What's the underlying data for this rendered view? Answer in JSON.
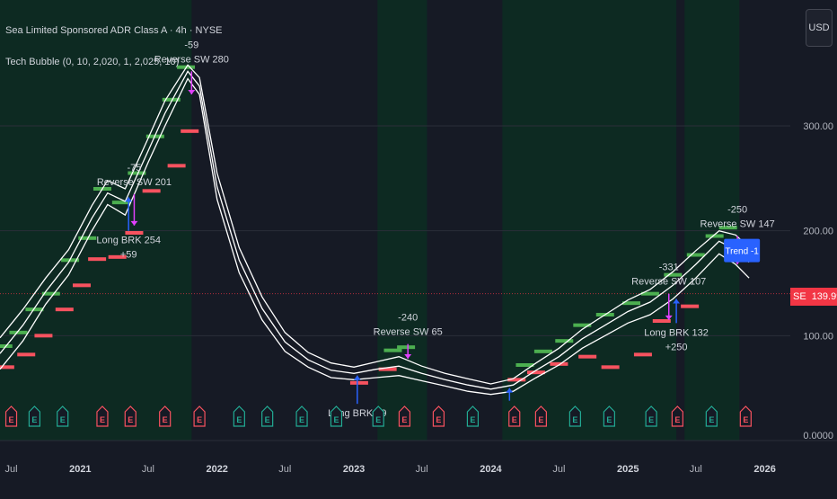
{
  "header": {
    "title": "Sea Limited Sponsored ADR Class A · 4h · NYSE",
    "indicator": "Tech Bubble (0, 10, 2,020, 1, 2,025, 10)"
  },
  "currency": "USD",
  "last_price": {
    "symbol": "SE",
    "value": "139.99"
  },
  "colors": {
    "background": "#161a25",
    "bull_zone": "#0d2a22",
    "bear_zone": "#161a25",
    "ma_line": "#ffffff",
    "candle_up": "#26a69a",
    "candle_down": "#ef5350",
    "long_marker": "#2962ff",
    "reverse_marker": "#e040fb",
    "bar_green": "#4caf50",
    "bar_red": "#f7525f",
    "last_price": "#f23645"
  },
  "chart_data": {
    "type": "line",
    "title": "Sea Limited Sponsored ADR Class A · 4h · NYSE",
    "xlabel": "",
    "ylabel": "",
    "x_ticks": [
      "Jul",
      "2021",
      "Jul",
      "2022",
      "Jul",
      "2023",
      "Jul",
      "2024",
      "Jul",
      "2025",
      "Jul",
      "2026"
    ],
    "x_tick_dates": [
      "2020-07-01",
      "2021-01-01",
      "2021-07-01",
      "2022-01-01",
      "2022-07-01",
      "2023-01-01",
      "2023-07-01",
      "2024-01-01",
      "2024-07-01",
      "2025-01-01",
      "2025-07-01",
      "2026-01-01"
    ],
    "y_ticks": [
      "100.00",
      "200.00",
      "300.00"
    ],
    "y_tick_values": [
      100,
      200,
      300
    ],
    "y_bottom_label": "0.0000",
    "xlim": [
      "2020-06-01",
      "2026-03-10"
    ],
    "ylim": [
      0,
      420
    ],
    "series": [
      {
        "points": [
          [
            "2020-06-01",
            68
          ],
          [
            "2020-08-01",
            95
          ],
          [
            "2020-10-01",
            130
          ],
          [
            "2020-12-01",
            158
          ],
          [
            "2021-02-01",
            200
          ],
          [
            "2021-03-15",
            225
          ],
          [
            "2021-05-01",
            215
          ],
          [
            "2021-07-01",
            265
          ],
          [
            "2021-08-15",
            300
          ],
          [
            "2021-10-15",
            345
          ],
          [
            "2021-11-15",
            330
          ],
          [
            "2022-01-01",
            230
          ],
          [
            "2022-03-01",
            160
          ],
          [
            "2022-05-01",
            115
          ],
          [
            "2022-07-01",
            85
          ],
          [
            "2022-09-01",
            70
          ],
          [
            "2022-11-01",
            60
          ],
          [
            "2023-01-01",
            58
          ],
          [
            "2023-03-01",
            60
          ],
          [
            "2023-05-01",
            62
          ],
          [
            "2023-07-01",
            57
          ],
          [
            "2023-09-01",
            52
          ],
          [
            "2023-11-01",
            47
          ],
          [
            "2024-01-01",
            44
          ],
          [
            "2024-03-01",
            47
          ],
          [
            "2024-05-01",
            60
          ],
          [
            "2024-07-01",
            72
          ],
          [
            "2024-09-01",
            88
          ],
          [
            "2024-11-01",
            100
          ],
          [
            "2025-01-01",
            112
          ],
          [
            "2025-03-01",
            120
          ],
          [
            "2025-05-01",
            135
          ],
          [
            "2025-07-01",
            155
          ],
          [
            "2025-09-01",
            178
          ],
          [
            "2025-10-15",
            168
          ],
          [
            "2025-11-20",
            155
          ]
        ]
      },
      {
        "points": [
          [
            "2020-06-01",
            83
          ],
          [
            "2020-08-01",
            110
          ],
          [
            "2020-10-01",
            142
          ],
          [
            "2020-12-01",
            170
          ],
          [
            "2021-02-01",
            212
          ],
          [
            "2021-03-15",
            236
          ],
          [
            "2021-05-01",
            228
          ],
          [
            "2021-07-01",
            276
          ],
          [
            "2021-08-15",
            312
          ],
          [
            "2021-10-15",
            352
          ],
          [
            "2021-11-15",
            338
          ],
          [
            "2022-01-01",
            242
          ],
          [
            "2022-03-01",
            172
          ],
          [
            "2022-05-01",
            126
          ],
          [
            "2022-07-01",
            94
          ],
          [
            "2022-09-01",
            77
          ],
          [
            "2022-11-01",
            67
          ],
          [
            "2023-01-01",
            64
          ],
          [
            "2023-03-01",
            68
          ],
          [
            "2023-05-01",
            71
          ],
          [
            "2023-07-01",
            64
          ],
          [
            "2023-09-01",
            58
          ],
          [
            "2023-11-01",
            53
          ],
          [
            "2024-01-01",
            49
          ],
          [
            "2024-03-01",
            53
          ],
          [
            "2024-05-01",
            67
          ],
          [
            "2024-07-01",
            80
          ],
          [
            "2024-09-01",
            97
          ],
          [
            "2024-11-01",
            110
          ],
          [
            "2025-01-01",
            123
          ],
          [
            "2025-03-01",
            132
          ],
          [
            "2025-05-01",
            148
          ],
          [
            "2025-07-01",
            168
          ],
          [
            "2025-09-01",
            190
          ],
          [
            "2025-10-15",
            182
          ],
          [
            "2025-11-20",
            170
          ]
        ]
      },
      {
        "points": [
          [
            "2020-06-01",
            98
          ],
          [
            "2020-08-01",
            125
          ],
          [
            "2020-10-01",
            155
          ],
          [
            "2020-12-01",
            182
          ],
          [
            "2021-02-01",
            224
          ],
          [
            "2021-03-15",
            248
          ],
          [
            "2021-05-01",
            240
          ],
          [
            "2021-07-01",
            288
          ],
          [
            "2021-08-15",
            324
          ],
          [
            "2021-10-15",
            358
          ],
          [
            "2021-11-15",
            346
          ],
          [
            "2022-01-01",
            255
          ],
          [
            "2022-03-01",
            184
          ],
          [
            "2022-05-01",
            137
          ],
          [
            "2022-07-01",
            103
          ],
          [
            "2022-09-01",
            84
          ],
          [
            "2022-11-01",
            74
          ],
          [
            "2023-01-01",
            70
          ],
          [
            "2023-03-01",
            75
          ],
          [
            "2023-05-01",
            80
          ],
          [
            "2023-07-01",
            71
          ],
          [
            "2023-09-01",
            64
          ],
          [
            "2023-11-01",
            59
          ],
          [
            "2024-01-01",
            54
          ],
          [
            "2024-03-01",
            59
          ],
          [
            "2024-05-01",
            74
          ],
          [
            "2024-07-01",
            88
          ],
          [
            "2024-09-01",
            106
          ],
          [
            "2024-11-01",
            120
          ],
          [
            "2025-01-01",
            134
          ],
          [
            "2025-03-01",
            144
          ],
          [
            "2025-05-01",
            161
          ],
          [
            "2025-07-01",
            181
          ],
          [
            "2025-09-01",
            200
          ],
          [
            "2025-10-15",
            196
          ],
          [
            "2025-11-20",
            184
          ]
        ]
      }
    ],
    "bull_zones": [
      [
        "2020-06-01",
        "2021-10-25"
      ],
      [
        "2023-03-05",
        "2023-07-15"
      ],
      [
        "2024-02-01",
        "2025-05-10"
      ],
      [
        "2025-06-01",
        "2025-10-25"
      ]
    ],
    "level_bars_green": [
      [
        "2020-06-10",
        90
      ],
      [
        "2020-07-20",
        103
      ],
      [
        "2020-09-01",
        125
      ],
      [
        "2020-10-15",
        140
      ],
      [
        "2020-12-05",
        172
      ],
      [
        "2021-01-20",
        193
      ],
      [
        "2021-03-01",
        240
      ],
      [
        "2021-04-20",
        227
      ],
      [
        "2021-06-01",
        255
      ],
      [
        "2021-07-20",
        290
      ],
      [
        "2021-09-01",
        325
      ],
      [
        "2021-10-10",
        356
      ],
      [
        "2023-04-15",
        86
      ],
      [
        "2023-05-20",
        89
      ],
      [
        "2024-04-01",
        72
      ],
      [
        "2024-05-20",
        85
      ],
      [
        "2024-07-15",
        95
      ],
      [
        "2024-09-01",
        110
      ],
      [
        "2024-11-01",
        120
      ],
      [
        "2025-01-10",
        131
      ],
      [
        "2025-03-01",
        140
      ],
      [
        "2025-05-01",
        158
      ],
      [
        "2025-07-01",
        177
      ],
      [
        "2025-08-20",
        195
      ],
      [
        "2025-09-25",
        203
      ]
    ],
    "level_bars_red": [
      [
        "2020-06-15",
        70
      ],
      [
        "2020-08-10",
        82
      ],
      [
        "2020-09-25",
        100
      ],
      [
        "2020-11-20",
        125
      ],
      [
        "2021-01-05",
        148
      ],
      [
        "2021-02-15",
        173
      ],
      [
        "2021-04-10",
        175
      ],
      [
        "2021-05-25",
        198
      ],
      [
        "2021-07-10",
        238
      ],
      [
        "2021-09-15",
        262
      ],
      [
        "2021-10-20",
        295
      ],
      [
        "2023-01-15",
        55
      ],
      [
        "2023-04-01",
        68
      ],
      [
        "2024-03-10",
        58
      ],
      [
        "2024-05-01",
        65
      ],
      [
        "2024-07-01",
        73
      ],
      [
        "2024-09-15",
        80
      ],
      [
        "2024-11-15",
        70
      ],
      [
        "2025-02-10",
        82
      ],
      [
        "2025-04-01",
        114
      ],
      [
        "2025-06-15",
        128
      ]
    ],
    "earnings_markers": [
      [
        "2020-07-01",
        "E",
        "red"
      ],
      [
        "2020-09-01",
        "E",
        "green"
      ],
      [
        "2020-11-15",
        "E",
        "green"
      ],
      [
        "2021-03-01",
        "E",
        "red"
      ],
      [
        "2021-05-15",
        "E",
        "red"
      ],
      [
        "2021-08-15",
        "E",
        "red"
      ],
      [
        "2021-11-15",
        "E",
        "red"
      ],
      [
        "2022-03-01",
        "E",
        "green"
      ],
      [
        "2022-05-15",
        "E",
        "green"
      ],
      [
        "2022-08-15",
        "E",
        "green"
      ],
      [
        "2022-11-15",
        "E",
        "green"
      ],
      [
        "2023-03-07",
        "E",
        "green"
      ],
      [
        "2023-05-16",
        "E",
        "red"
      ],
      [
        "2023-08-15",
        "E",
        "red"
      ],
      [
        "2023-11-14",
        "E",
        "green"
      ],
      [
        "2024-03-04",
        "E",
        "red"
      ],
      [
        "2024-05-14",
        "E",
        "red"
      ],
      [
        "2024-08-13",
        "E",
        "green"
      ],
      [
        "2024-11-12",
        "E",
        "green"
      ],
      [
        "2025-03-04",
        "E",
        "green"
      ],
      [
        "2025-05-13",
        "E",
        "red"
      ],
      [
        "2025-08-12",
        "E",
        "green"
      ],
      [
        "2025-11-11",
        "E",
        "red"
      ]
    ],
    "annotations": [
      {
        "kind": "reverse",
        "lines": [
          "-75",
          "Reverse SW 201"
        ],
        "x": "2021-05-25",
        "y": 235,
        "arrow_to": 205
      },
      {
        "kind": "reverse",
        "lines": [
          "-59",
          "Reverse SW 280"
        ],
        "x": "2021-10-25",
        "y": 352,
        "arrow_to": 330
      },
      {
        "kind": "long",
        "lines": [
          "Long BRK 254",
          "+59"
        ],
        "x": "2021-05-10",
        "y": 200,
        "arrow_to": 232
      },
      {
        "kind": "reverse",
        "lines": [
          "-240",
          "Reverse SW 65"
        ],
        "x": "2023-05-25",
        "y": 92,
        "arrow_to": 78
      },
      {
        "kind": "long",
        "lines": [
          "Long BRK 69"
        ],
        "x": "2023-01-10",
        "y": 35,
        "arrow_to": 62
      },
      {
        "kind": "long",
        "lines": [],
        "x": "2024-02-20",
        "y": 38,
        "arrow_to": 50
      },
      {
        "kind": "reverse",
        "lines": [
          "-331",
          "Reverse SW 107"
        ],
        "x": "2025-04-20",
        "y": 140,
        "arrow_to": 115
      },
      {
        "kind": "long",
        "lines": [
          "Long BRK 132",
          "+250"
        ],
        "x": "2025-05-10",
        "y": 112,
        "arrow_to": 135
      },
      {
        "kind": "reverse",
        "lines": [
          "-250",
          "Reverse SW 147"
        ],
        "x": "2025-10-20",
        "y": 195,
        "arrow_to": 168
      }
    ],
    "trend_label": "Trend -1",
    "last_value": 139.99,
    "grid": true,
    "legend": "top-left"
  }
}
